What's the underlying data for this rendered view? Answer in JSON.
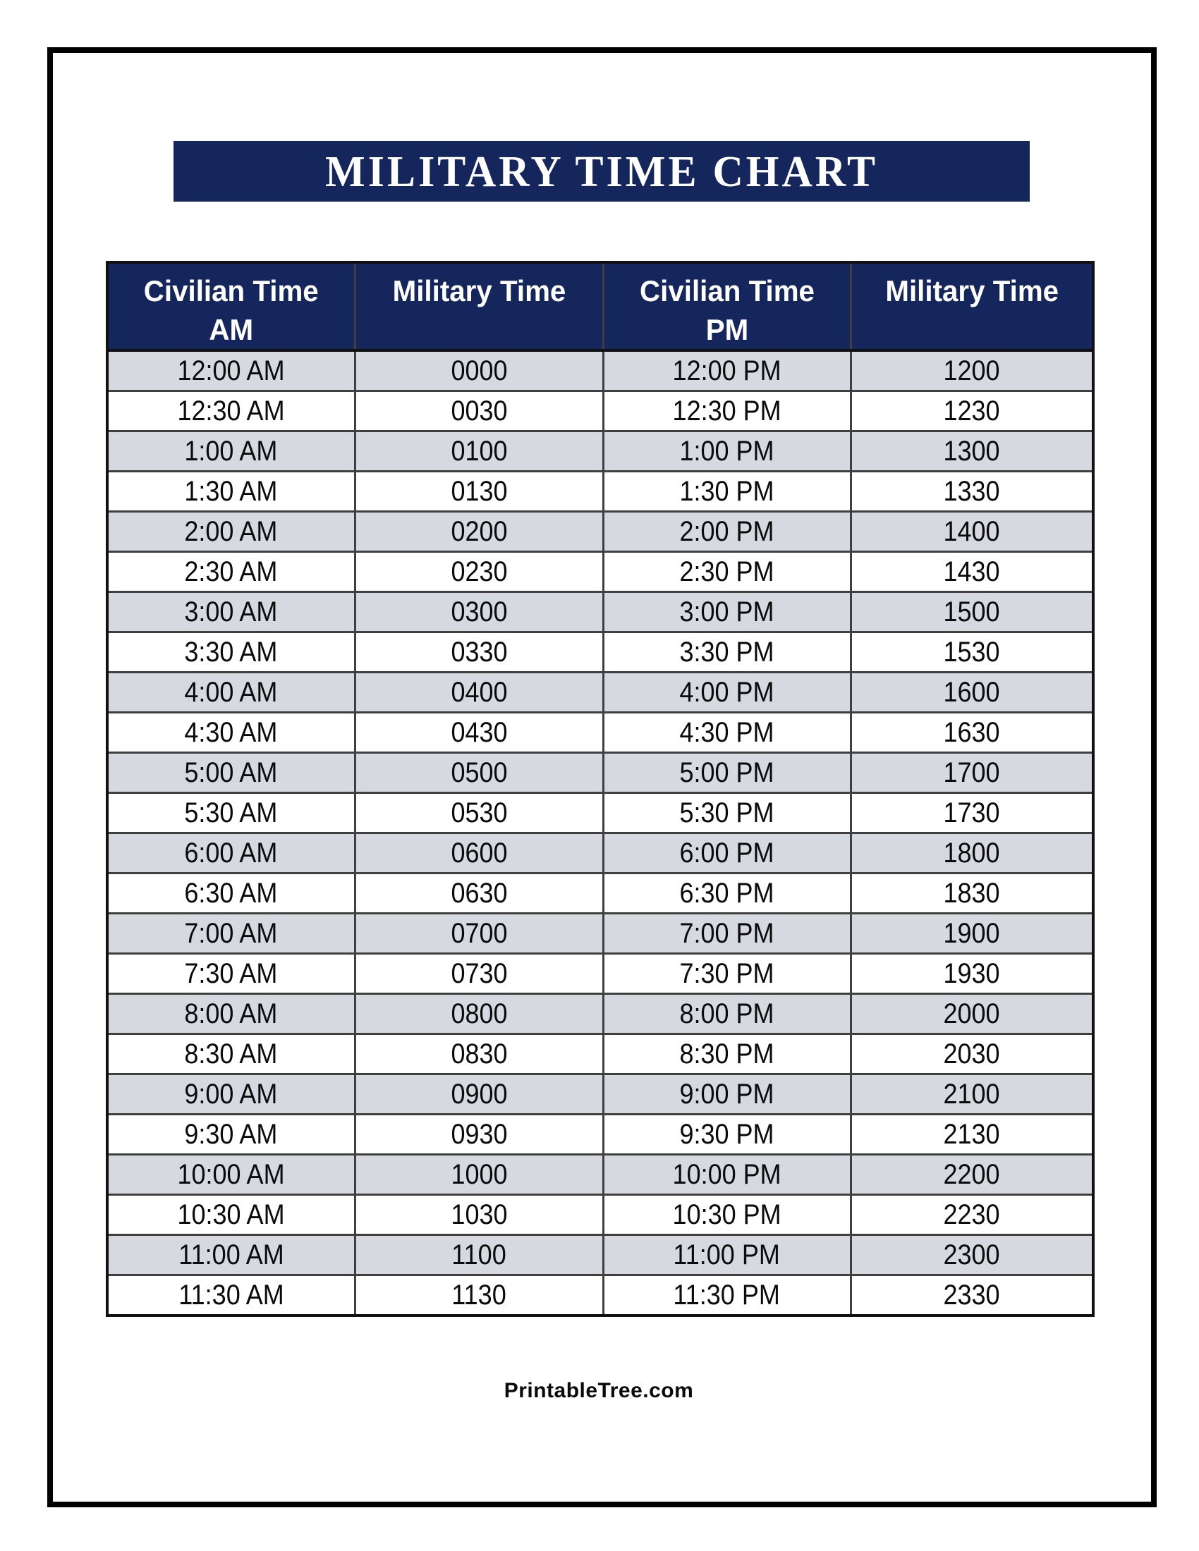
{
  "page": {
    "title": "MILITARY TIME CHART",
    "footer": "PrintableTree.com"
  },
  "colors": {
    "navy": "#15265d",
    "row_alt": "#d6dae0",
    "row_white": "#ffffff",
    "grid_line": "#3f3f3f",
    "outer_border": "#111111",
    "text": "#0b0b0b",
    "header_text": "#ffffff"
  },
  "table": {
    "columns": [
      {
        "line1": "Civilian Time",
        "line2": "AM"
      },
      {
        "line1": "Military Time",
        "line2": ""
      },
      {
        "line1": "Civilian Time",
        "line2": "PM"
      },
      {
        "line1": "Military Time",
        "line2": ""
      }
    ],
    "rows": [
      [
        "12:00 AM",
        "0000",
        "12:00 PM",
        "1200"
      ],
      [
        "12:30 AM",
        "0030",
        "12:30 PM",
        "1230"
      ],
      [
        "1:00 AM",
        "0100",
        "1:00 PM",
        "1300"
      ],
      [
        "1:30 AM",
        "0130",
        "1:30 PM",
        "1330"
      ],
      [
        "2:00 AM",
        "0200",
        "2:00 PM",
        "1400"
      ],
      [
        "2:30 AM",
        "0230",
        "2:30 PM",
        "1430"
      ],
      [
        "3:00 AM",
        "0300",
        "3:00 PM",
        "1500"
      ],
      [
        "3:30 AM",
        "0330",
        "3:30 PM",
        "1530"
      ],
      [
        "4:00 AM",
        "0400",
        "4:00 PM",
        "1600"
      ],
      [
        "4:30 AM",
        "0430",
        "4:30 PM",
        "1630"
      ],
      [
        "5:00 AM",
        "0500",
        "5:00 PM",
        "1700"
      ],
      [
        "5:30 AM",
        "0530",
        "5:30 PM",
        "1730"
      ],
      [
        "6:00 AM",
        "0600",
        "6:00 PM",
        "1800"
      ],
      [
        "6:30 AM",
        "0630",
        "6:30 PM",
        "1830"
      ],
      [
        "7:00 AM",
        "0700",
        "7:00 PM",
        "1900"
      ],
      [
        "7:30 AM",
        "0730",
        "7:30 PM",
        "1930"
      ],
      [
        "8:00 AM",
        "0800",
        "8:00 PM",
        "2000"
      ],
      [
        "8:30 AM",
        "0830",
        "8:30 PM",
        "2030"
      ],
      [
        "9:00 AM",
        "0900",
        "9:00 PM",
        "2100"
      ],
      [
        "9:30 AM",
        "0930",
        "9:30 PM",
        "2130"
      ],
      [
        "10:00 AM",
        "1000",
        "10:00 PM",
        "2200"
      ],
      [
        "10:30 AM",
        "1030",
        "10:30 PM",
        "2230"
      ],
      [
        "11:00 AM",
        "1100",
        "11:00 PM",
        "2300"
      ],
      [
        "11:30 AM",
        "1130",
        "11:30 PM",
        "2330"
      ]
    ]
  }
}
